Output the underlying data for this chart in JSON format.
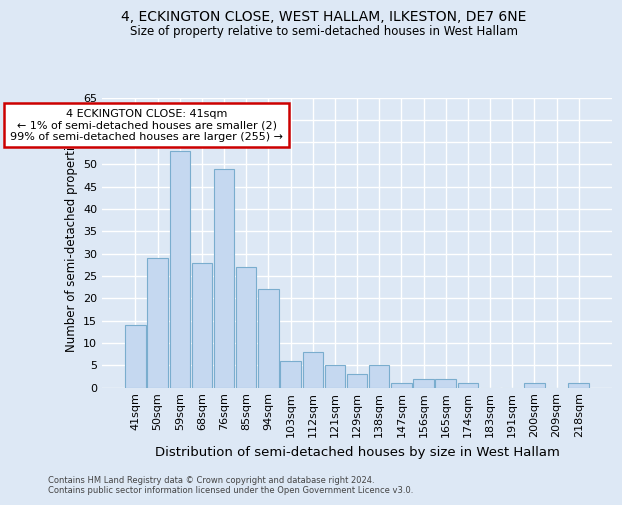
{
  "title_line1": "4, ECKINGTON CLOSE, WEST HALLAM, ILKESTON, DE7 6NE",
  "title_line2": "Size of property relative to semi-detached houses in West Hallam",
  "xlabel": "Distribution of semi-detached houses by size in West Hallam",
  "ylabel": "Number of semi-detached properties",
  "categories": [
    "41sqm",
    "50sqm",
    "59sqm",
    "68sqm",
    "76sqm",
    "85sqm",
    "94sqm",
    "103sqm",
    "112sqm",
    "121sqm",
    "129sqm",
    "138sqm",
    "147sqm",
    "156sqm",
    "165sqm",
    "174sqm",
    "183sqm",
    "191sqm",
    "200sqm",
    "209sqm",
    "218sqm"
  ],
  "values": [
    14,
    29,
    53,
    28,
    49,
    27,
    22,
    6,
    8,
    5,
    3,
    5,
    1,
    2,
    2,
    1,
    0,
    0,
    1,
    0,
    1
  ],
  "bar_color": "#c5d8f0",
  "bar_edge_color": "#7aadce",
  "annotation_line1": "4 ECKINGTON CLOSE: 41sqm",
  "annotation_line2": "← 1% of semi-detached houses are smaller (2)",
  "annotation_line3": "99% of semi-detached houses are larger (255) →",
  "annotation_box_color": "#ffffff",
  "annotation_box_edge_color": "#cc0000",
  "ylim": [
    0,
    65
  ],
  "yticks": [
    0,
    5,
    10,
    15,
    20,
    25,
    30,
    35,
    40,
    45,
    50,
    55,
    60,
    65
  ],
  "background_color": "#dde8f5",
  "grid_color": "#ffffff",
  "footnote_line1": "Contains HM Land Registry data © Crown copyright and database right 2024.",
  "footnote_line2": "Contains public sector information licensed under the Open Government Licence v3.0."
}
